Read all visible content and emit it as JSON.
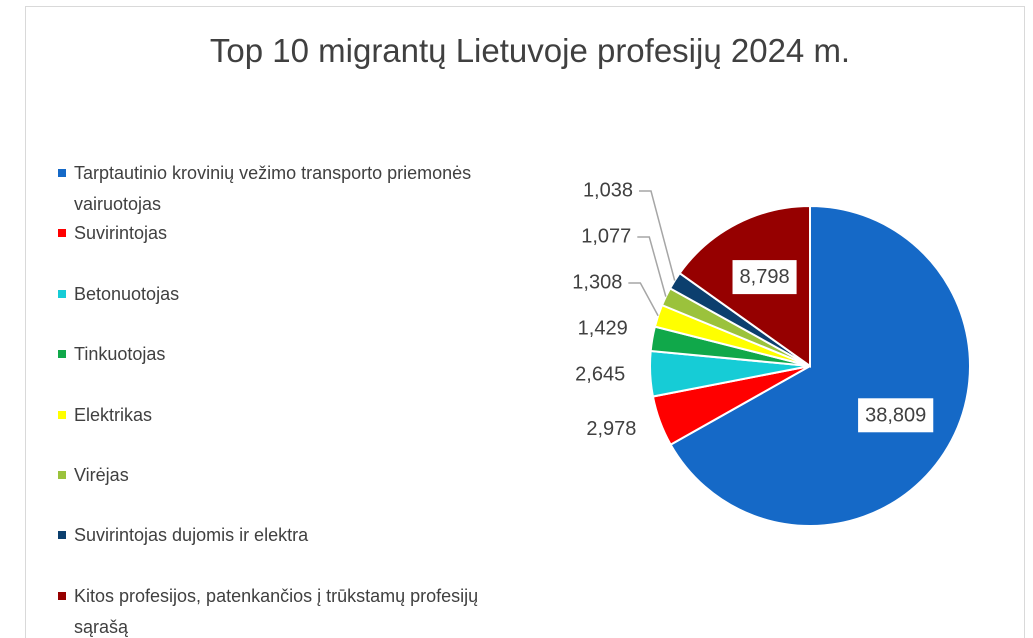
{
  "chart_data": {
    "type": "pie",
    "title": "Top 10 migrantų  Lietuvoje profesijų 2024 m.",
    "categories": [
      "Tarptautinio krovinių vežimo transporto priemonės vairuotojas",
      "Suvirintojas",
      "Betonuotojas",
      "Tinkuotojas",
      "Elektrikas",
      "Virėjas",
      "Suvirintojas dujomis ir elektra",
      "Kitos profesijos, patenkančios į trūkstamų profesijų sąrašą"
    ],
    "values": [
      38809,
      2978,
      2645,
      1429,
      1308,
      1077,
      1038,
      8798
    ],
    "value_labels": [
      "38,809",
      "2,978",
      "2,645",
      "1,429",
      "1,308",
      "1,077",
      "1,038",
      "8,798"
    ],
    "colors": [
      "#1569c7",
      "#ff0000",
      "#16ccd6",
      "#10a84a",
      "#ffff00",
      "#9bc23c",
      "#0c3f6e",
      "#960000"
    ],
    "legend": "left"
  }
}
